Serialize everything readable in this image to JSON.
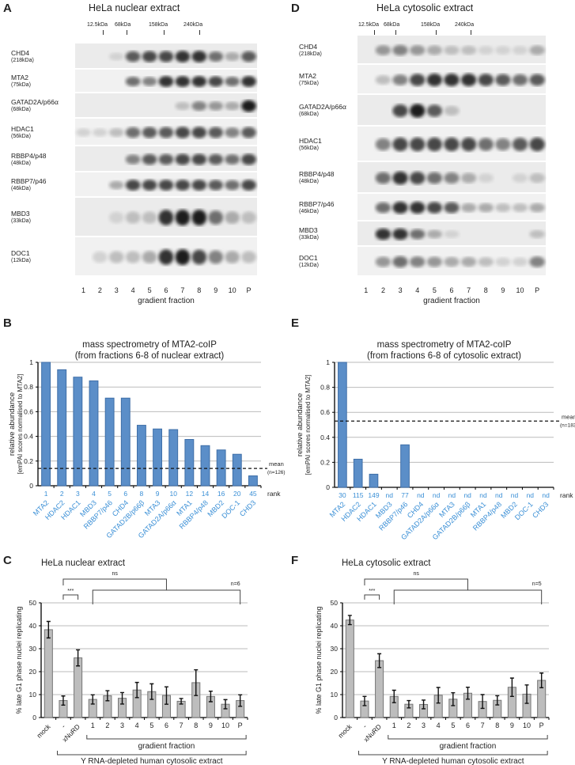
{
  "panels": {
    "A": {
      "letter": "A",
      "title": "HeLa nuclear extract",
      "markers": [
        "12.5kDa",
        "68kDa",
        "158kDa",
        "240kDa"
      ],
      "lanes": [
        "1",
        "2",
        "3",
        "4",
        "5",
        "6",
        "7",
        "8",
        "9",
        "10",
        "P"
      ],
      "xlabel": "gradient fraction",
      "rows": [
        {
          "name": "CHD4",
          "mw": "(218kDa)",
          "band_intensity": [
            0,
            0,
            0.1,
            0.7,
            0.8,
            0.8,
            0.9,
            0.9,
            0.6,
            0.3,
            0.7
          ]
        },
        {
          "name": "MTA2",
          "mw": "(75kDa)",
          "band_intensity": [
            0,
            0,
            0,
            0.6,
            0.5,
            0.9,
            0.9,
            0.9,
            0.8,
            0.6,
            0.9
          ]
        },
        {
          "name": "GATAD2A/p66α",
          "mw": "(68kDa)",
          "band_intensity": [
            0,
            0,
            0,
            0,
            0,
            0,
            0.2,
            0.5,
            0.4,
            0.3,
            1
          ]
        },
        {
          "name": "HDAC1",
          "mw": "(56kDa)",
          "band_intensity": [
            0.1,
            0.1,
            0.2,
            0.6,
            0.7,
            0.7,
            0.8,
            0.8,
            0.7,
            0.5,
            0.7
          ]
        },
        {
          "name": "RBBP4/p48",
          "mw": "(48kDa)",
          "band_intensity": [
            0,
            0,
            0,
            0.5,
            0.7,
            0.7,
            0.8,
            0.8,
            0.7,
            0.6,
            0.8
          ]
        },
        {
          "name": "RBBP7/p46",
          "mw": "(46kDa)",
          "band_intensity": [
            0,
            0,
            0.3,
            0.8,
            0.8,
            0.8,
            0.8,
            0.8,
            0.7,
            0.6,
            0.8
          ]
        },
        {
          "name": "MBD3",
          "mw": "(33kDa)",
          "band_intensity": [
            0,
            0,
            0.1,
            0.2,
            0.2,
            0.9,
            1,
            1,
            0.6,
            0.3,
            0.2
          ]
        },
        {
          "name": "DOC1",
          "mw": "(12kDa)",
          "band_intensity": [
            0,
            0.1,
            0.2,
            0.2,
            0.3,
            0.9,
            1,
            0.8,
            0.5,
            0.3,
            0.2
          ]
        }
      ]
    },
    "D": {
      "letter": "D",
      "title": "HeLa cytosolic extract",
      "markers": [
        "12.5kDa",
        "68kDa",
        "158kDa",
        "240kDa"
      ],
      "lanes": [
        "1",
        "2",
        "3",
        "4",
        "5",
        "6",
        "7",
        "8",
        "9",
        "10",
        "P"
      ],
      "xlabel": "gradient fraction",
      "rows": [
        {
          "name": "CHD4",
          "mw": "(218kDa)",
          "band_intensity": [
            0,
            0.4,
            0.5,
            0.4,
            0.3,
            0.2,
            0.2,
            0.1,
            0.1,
            0.1,
            0.3
          ]
        },
        {
          "name": "MTA2",
          "mw": "(75kDa)",
          "band_intensity": [
            0,
            0.2,
            0.5,
            0.8,
            0.9,
            0.9,
            0.9,
            0.8,
            0.7,
            0.6,
            0.7
          ]
        },
        {
          "name": "GATAD2A/p66α",
          "mw": "(68kDa)",
          "band_intensity": [
            0,
            0,
            0.8,
            1,
            0.7,
            0.2,
            0,
            0,
            0,
            0,
            0
          ]
        },
        {
          "name": "HDAC1",
          "mw": "(56kDa)",
          "band_intensity": [
            0,
            0.5,
            0.8,
            0.8,
            0.8,
            0.8,
            0.8,
            0.6,
            0.5,
            0.7,
            0.8
          ]
        },
        {
          "name": "RBBP4/p48",
          "mw": "(48kDa)",
          "band_intensity": [
            0,
            0.6,
            0.9,
            0.8,
            0.6,
            0.5,
            0.3,
            0.1,
            0,
            0.1,
            0.2
          ]
        },
        {
          "name": "RBBP7/p46",
          "mw": "(46kDa)",
          "band_intensity": [
            0,
            0.6,
            0.9,
            0.9,
            0.8,
            0.7,
            0.3,
            0.3,
            0.2,
            0.2,
            0.3
          ]
        },
        {
          "name": "MBD3",
          "mw": "(33kDa)",
          "band_intensity": [
            0,
            0.9,
            0.9,
            0.6,
            0.3,
            0.1,
            0,
            0,
            0,
            0,
            0.2
          ]
        },
        {
          "name": "DOC1",
          "mw": "(12kDa)",
          "band_intensity": [
            0,
            0.4,
            0.6,
            0.5,
            0.4,
            0.3,
            0.3,
            0.2,
            0.1,
            0.1,
            0.5
          ]
        }
      ]
    }
  },
  "chart_data": [
    {
      "id": "B",
      "letter": "B",
      "type": "bar",
      "title": "mass spectrometry of MTA2-coIP",
      "subtitle": "(from fractions 6-8 of nuclear extract)",
      "ylabel": "relative abundance",
      "ylabel2": "[emPAI scores normalised to MTA2]",
      "ylim": [
        0,
        1
      ],
      "yticks": [
        "0",
        "0.2",
        "0.4",
        "0.6",
        "0.8",
        "1"
      ],
      "categories": [
        "MTA2",
        "HDAC2",
        "HDAC1",
        "MBD3",
        "RBBP7/p46",
        "CHD4",
        "GATAD2B/p66β",
        "MTA3",
        "GATAD2A/p66α",
        "MTA1",
        "RBBP4/p48",
        "MBD2",
        "DOC-1",
        "CHD3"
      ],
      "values": [
        1,
        0.94,
        0.88,
        0.85,
        0.71,
        0.71,
        0.49,
        0.46,
        0.455,
        0.375,
        0.325,
        0.29,
        0.255,
        0.08
      ],
      "ranks": [
        "1",
        "2",
        "3",
        "4",
        "5",
        "6",
        "8",
        "9",
        "10",
        "12",
        "14",
        "16",
        "20",
        "45"
      ],
      "rank_label": "rank",
      "mean": 0.14,
      "mean_label": "mean",
      "mean_n": "(n=126)",
      "grid": true,
      "bar_color": "#5b8ec8",
      "label_color": "#3a8fd6"
    },
    {
      "id": "E",
      "letter": "E",
      "type": "bar",
      "title": "mass spectrometry of MTA2-coIP",
      "subtitle": "(from fractions 6-8 of cytosolic extract)",
      "ylabel": "relative abundance",
      "ylabel2": "[emPAI scores normalised to MTA2]",
      "ylim": [
        0,
        1
      ],
      "yticks": [
        "0",
        "0.2",
        "0.4",
        "0.6",
        "0.8",
        "1"
      ],
      "categories": [
        "MTA2",
        "HDAC2",
        "HDAC1",
        "MBD3",
        "RBBP7/p46",
        "CHD4",
        "GATAD2A/p66α",
        "MTA3",
        "GATAD2B/p66β",
        "MTA1",
        "RBBP4/p48",
        "MBD2",
        "DOC-1",
        "CHD3"
      ],
      "values": [
        1,
        0.225,
        0.105,
        0,
        0.34,
        0,
        0,
        0,
        0,
        0,
        0,
        0,
        0,
        0
      ],
      "ranks": [
        "30",
        "115",
        "149",
        "nd",
        "77",
        "nd",
        "nd",
        "nd",
        "nd",
        "nd",
        "nd",
        "nd",
        "nd",
        "nd"
      ],
      "rank_label": "rank",
      "mean": 0.53,
      "mean_label": "mean",
      "mean_n": "(n=183)",
      "grid": true,
      "bar_color": "#5b8ec8",
      "label_color": "#3a8fd6"
    },
    {
      "id": "C",
      "letter": "C",
      "type": "bar",
      "title": "HeLa nuclear extract",
      "ylabel": "% late G1 phase nuclei replicating",
      "ylim": [
        0,
        50
      ],
      "yticks": [
        "0",
        "10",
        "20",
        "30",
        "40",
        "50"
      ],
      "categories": [
        "mock",
        "-",
        "xNuRD",
        "1",
        "2",
        "3",
        "4",
        "5",
        "6",
        "7",
        "8",
        "9",
        "10",
        "P"
      ],
      "values": [
        38.3,
        7.4,
        26,
        7.9,
        9.5,
        8.4,
        12,
        11.3,
        9.6,
        7.1,
        15.2,
        9.2,
        5.8,
        7.4
      ],
      "errors": [
        3.6,
        2,
        3.5,
        2,
        2.2,
        2.5,
        3.3,
        3.4,
        3.8,
        1.2,
        5.6,
        2.3,
        2,
        2.5
      ],
      "xlabel": "gradient fraction",
      "group_label": "Y RNA-depleted human cytosolic extract",
      "sig1": "***",
      "sig2": "ns",
      "n_label": "n=6",
      "grid": true,
      "bar_color": "#bdbdbd"
    },
    {
      "id": "F",
      "letter": "F",
      "type": "bar",
      "title": "HeLa cytosolic extract",
      "ylabel": "% late G1 phase nuclei replicating",
      "ylim": [
        0,
        50
      ],
      "yticks": [
        "0",
        "10",
        "20",
        "30",
        "40",
        "50"
      ],
      "categories": [
        "mock",
        "-",
        "xNuRD",
        "1",
        "2",
        "3",
        "4",
        "5",
        "6",
        "7",
        "8",
        "9",
        "10",
        "P"
      ],
      "values": [
        42.5,
        7.2,
        24.8,
        9.2,
        5.8,
        5.7,
        9.7,
        8,
        10.6,
        7,
        7.5,
        13.2,
        10.2,
        16.2
      ],
      "errors": [
        2,
        2,
        3,
        2.7,
        1.6,
        1.9,
        3.4,
        2.8,
        2.6,
        3,
        2,
        4,
        4,
        3.2
      ],
      "xlabel": "gradient fraction",
      "group_label": "Y RNA-depleted human cytosolic extract",
      "sig1": "***",
      "sig2": "ns",
      "n_label": "n=5",
      "grid": true,
      "bar_color": "#bdbdbd"
    }
  ]
}
